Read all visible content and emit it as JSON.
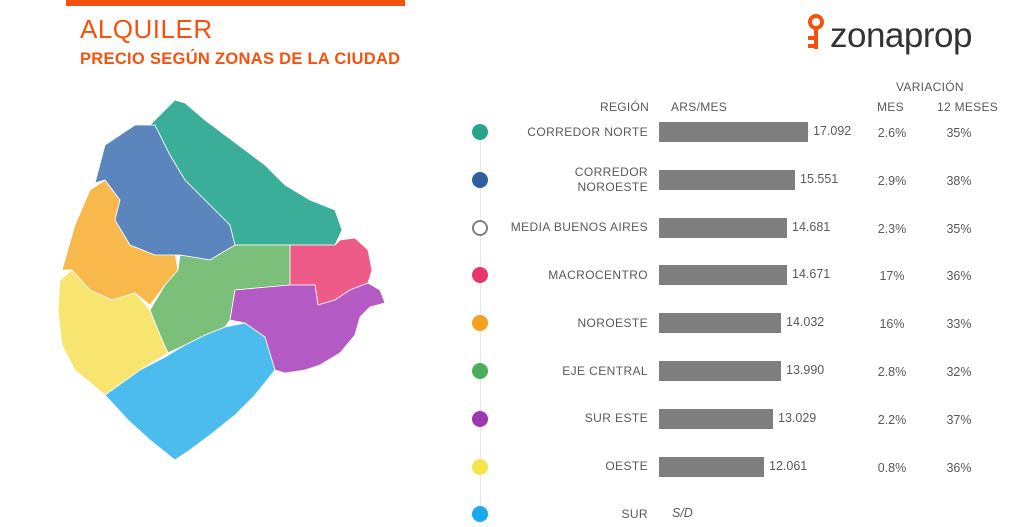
{
  "header": {
    "title": "ALQUILER",
    "subtitle": "PRECIO SEGÚN ZONAS DE LA CIUDAD",
    "logo_text": "zonaprop"
  },
  "columns": {
    "region": "REGIÓN",
    "price": "ARS/MES",
    "variation": "VARIACIÓN",
    "month": "MES",
    "year": "12 MESES"
  },
  "chart_data": {
    "type": "bar",
    "orientation": "horizontal",
    "categories": [
      "CORREDOR NORTE",
      "CORREDOR NOROESTE",
      "MEDIA BUENOS AIRES",
      "MACROCENTRO",
      "NOROESTE",
      "EJE CENTRAL",
      "SUR ESTE",
      "OESTE",
      "SUR"
    ],
    "category_lines": [
      [
        "CORREDOR NORTE"
      ],
      [
        "CORREDOR",
        "NOROESTE"
      ],
      [
        "MEDIA BUENOS AIRES"
      ],
      [
        "MACROCENTRO"
      ],
      [
        "NOROESTE"
      ],
      [
        "EJE CENTRAL"
      ],
      [
        "SUR ESTE"
      ],
      [
        "OESTE"
      ],
      [
        "SUR"
      ]
    ],
    "values": [
      17092,
      15551,
      14681,
      14671,
      14032,
      13990,
      13029,
      12061,
      null
    ],
    "value_labels": [
      "17.092",
      "15.551",
      "14.681",
      "14.671",
      "14.032",
      "13.990",
      "13.029",
      "12.061",
      "S/D"
    ],
    "var_month": [
      "2.6%",
      "2.9%",
      "2.3%",
      "17%",
      "16%",
      "2.8%",
      "2.2%",
      "0.8%",
      ""
    ],
    "var_12m": [
      "35%",
      "38%",
      "35%",
      "36%",
      "33%",
      "32%",
      "37%",
      "36%",
      ""
    ],
    "colors": [
      "#2aa58c",
      "#2f5f9f",
      "#ffffff",
      "#e8356d",
      "#f6a021",
      "#4cae5a",
      "#9b37b0",
      "#f6e54a",
      "#1aaaf0"
    ],
    "xlim": [
      0,
      17092
    ],
    "grid": false,
    "legend": "none"
  },
  "map": {
    "zone_colors": {
      "corredor_norte": "#3aae98",
      "corredor_noroeste": "#5b86bd",
      "noroeste": "#f8b84c",
      "eje_central": "#7bbf7a",
      "macrocentro": "#ee5b88",
      "sur_este": "#b35ac5",
      "oeste": "#f7e570",
      "sur": "#4cbcef"
    }
  }
}
